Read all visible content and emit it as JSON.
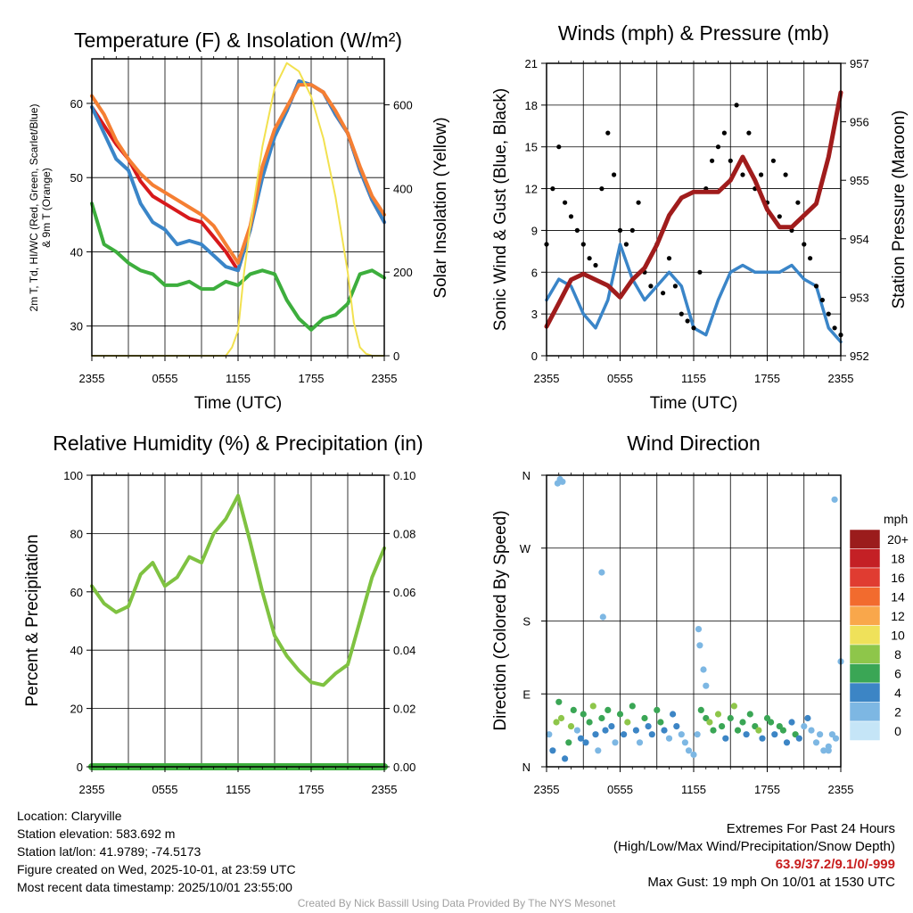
{
  "panels": {
    "temp": {
      "title": "Temperature (F) & Insolation (W/m²)",
      "xlabel": "Time (UTC)",
      "ylabel_left_line1": "2m T, Td, HI/WC (Red, Green, Scarlet/Blue)",
      "ylabel_left_line2": "& 9m T (Orange)",
      "ylabel_right": "Solar Insolation (Yellow)"
    },
    "wind": {
      "title": "Winds (mph) & Pressure (mb)",
      "xlabel": "Time (UTC)",
      "ylabel_left": "Sonic Wind & Gust (Blue, Black)",
      "ylabel_right": "Station Pressure (Maroon)"
    },
    "rh": {
      "title": "Relative Humidity (%) & Precipitation (in)",
      "ylabel_left": "Percent & Precipitation"
    },
    "dir": {
      "title": "Wind Direction",
      "ylabel_left": "Direction (Colored By Speed)",
      "legend_title": "mph"
    }
  },
  "station": {
    "location": "Location: Claryville",
    "elevation": "Station elevation: 583.692 m",
    "latlon": "Station lat/lon: 41.9789; -74.5173",
    "created": "Figure created on Wed, 2025-10-01, at 23:59 UTC",
    "recent": "Most recent data timestamp: 2025/10/01 23:55:00"
  },
  "extremes": {
    "title": "Extremes For Past 24 Hours",
    "subtitle": "(High/Low/Max Wind/Precipitation/Snow Depth)",
    "values": "63.9/37.2/9.1/0/-999",
    "max_gust": "Max Gust: 19 mph On 10/01 at 1530 UTC"
  },
  "credit": "Created By Nick Bassill Using Data Provided By The NYS Mesonet",
  "chart_data": [
    {
      "id": "temp",
      "type": "line",
      "x_ticks": [
        "2355",
        "0555",
        "1155",
        "1755",
        "2355"
      ],
      "x_range_hours": [
        0,
        24
      ],
      "y_left_ticks": [
        30,
        40,
        50,
        60
      ],
      "y_left_range": [
        26,
        66
      ],
      "y_right_ticks": [
        0,
        200,
        400,
        600
      ],
      "y_right_range": [
        0,
        710
      ],
      "series": [
        {
          "name": "2m T",
          "color": "#d7191c",
          "axis": "left",
          "hours": [
            0,
            1,
            2,
            3,
            4,
            5,
            6,
            7,
            8,
            9,
            10,
            11,
            12,
            13,
            14,
            15,
            16,
            17,
            18,
            19,
            20,
            21,
            22,
            23,
            24
          ],
          "values": [
            59.5,
            57,
            54.5,
            52.5,
            49.5,
            47.5,
            46.5,
            45.5,
            44.5,
            44,
            42,
            40,
            37.5,
            43,
            51,
            56,
            59,
            63,
            62.5,
            61.5,
            58.5,
            56,
            51,
            47,
            44
          ]
        },
        {
          "name": "Heat Index / Wind Chill",
          "color": "#3a85c8",
          "axis": "left",
          "hours": [
            0,
            1,
            2,
            3,
            4,
            5,
            6,
            7,
            8,
            9,
            10,
            11,
            12,
            13,
            14,
            15,
            16,
            17,
            18,
            19,
            20,
            21,
            22,
            23,
            24
          ],
          "values": [
            59.5,
            56,
            52.5,
            51,
            46.5,
            44,
            43,
            41,
            41.5,
            41,
            39.5,
            38,
            37.5,
            43,
            50,
            55.5,
            59,
            63,
            62.5,
            61.5,
            58.5,
            56,
            51,
            47,
            44
          ]
        },
        {
          "name": "9m T",
          "color": "#f57f33",
          "axis": "left",
          "hours": [
            0,
            1,
            2,
            3,
            4,
            5,
            6,
            7,
            8,
            9,
            10,
            11,
            12,
            13,
            14,
            15,
            16,
            17,
            18,
            19,
            20,
            21,
            22,
            23,
            24
          ],
          "values": [
            61,
            58.5,
            55,
            52.5,
            50.5,
            49,
            48,
            47,
            46,
            45,
            43.5,
            41,
            38.5,
            43.5,
            51.5,
            56.5,
            59.5,
            62.5,
            62.5,
            61.5,
            59,
            56,
            51.5,
            47.5,
            45
          ]
        },
        {
          "name": "Dew Point",
          "color": "#3dae3d",
          "axis": "left",
          "hours": [
            0,
            1,
            2,
            3,
            4,
            5,
            6,
            7,
            8,
            9,
            10,
            11,
            12,
            13,
            14,
            15,
            16,
            17,
            18,
            19,
            20,
            21,
            22,
            23,
            24
          ],
          "values": [
            46.5,
            41,
            40,
            38.5,
            37.5,
            37,
            35.5,
            35.5,
            36,
            35,
            35,
            36,
            35.5,
            37,
            37.5,
            37,
            33.5,
            31,
            29.5,
            31,
            31.5,
            33,
            37,
            37.5,
            36.5
          ]
        },
        {
          "name": "Solar Insolation",
          "color": "#f2e14f",
          "axis": "right",
          "hours": [
            0,
            1,
            2,
            3,
            4,
            5,
            6,
            7,
            8,
            9,
            10,
            11,
            11.5,
            12,
            12.5,
            13,
            14,
            15,
            16,
            17,
            18,
            19,
            20,
            21,
            21.5,
            22,
            22.5,
            23,
            24
          ],
          "values": [
            0,
            0,
            0,
            0,
            0,
            0,
            0,
            0,
            0,
            0,
            0,
            0,
            20,
            60,
            200,
            310,
            500,
            640,
            700,
            680,
            620,
            520,
            380,
            200,
            80,
            20,
            5,
            0,
            0
          ]
        }
      ]
    },
    {
      "id": "wind",
      "type": "line+scatter",
      "x_ticks": [
        "2355",
        "0555",
        "1155",
        "1755",
        "2355"
      ],
      "x_range_hours": [
        0,
        24
      ],
      "y_left_ticks": [
        0,
        3,
        6,
        9,
        12,
        15,
        18,
        21
      ],
      "y_left_range": [
        0,
        21
      ],
      "y_right_ticks": [
        952,
        953,
        954,
        955,
        956,
        957
      ],
      "y_right_range": [
        952,
        957
      ],
      "series": [
        {
          "name": "Sonic Wind",
          "color": "#3a85c8",
          "axis": "left",
          "hours": [
            0,
            1,
            2,
            3,
            4,
            5,
            6,
            7,
            8,
            9,
            10,
            11,
            12,
            13,
            14,
            15,
            16,
            17,
            18,
            19,
            20,
            21,
            22,
            23,
            24
          ],
          "values": [
            4,
            5.5,
            5,
            3,
            2,
            4,
            8,
            5.5,
            4,
            5,
            6,
            5,
            2,
            1.5,
            4,
            6,
            6.5,
            6,
            6,
            6,
            6.5,
            5.5,
            5,
            2,
            1
          ]
        },
        {
          "name": "Gust",
          "color": "#000000",
          "axis": "left",
          "hours": [
            0,
            0.5,
            1,
            1.5,
            2,
            2.5,
            3,
            3.5,
            4,
            4.5,
            5,
            5.5,
            6,
            6.5,
            7,
            7.5,
            8,
            8.5,
            9,
            9.5,
            10,
            10.5,
            11,
            11.5,
            12,
            12.5,
            13,
            13.5,
            14,
            14.5,
            15,
            15.5,
            16,
            16.5,
            17,
            17.5,
            18,
            18.5,
            19,
            19.5,
            20,
            20.5,
            21,
            21.5,
            22,
            22.5,
            23,
            23.5,
            24
          ],
          "values": [
            8,
            12,
            15,
            11,
            10,
            9,
            8,
            7,
            6.5,
            12,
            16,
            13,
            9,
            8,
            9,
            11,
            6,
            5,
            8,
            4.5,
            7,
            5,
            3,
            2.5,
            2,
            6,
            12,
            14,
            15,
            16,
            14,
            18,
            13,
            16,
            12,
            13,
            11,
            14,
            10,
            13,
            9,
            11,
            8,
            7,
            5,
            4,
            3,
            2,
            1.5
          ]
        },
        {
          "name": "Station Pressure",
          "color": "#a01c1c",
          "axis": "right",
          "hours": [
            0,
            1,
            2,
            3,
            4,
            5,
            6,
            7,
            8,
            9,
            10,
            11,
            12,
            13,
            14,
            15,
            16,
            17,
            18,
            19,
            20,
            21,
            22,
            23,
            24
          ],
          "values": [
            952.5,
            952.9,
            953.3,
            953.4,
            953.3,
            953.2,
            953.0,
            953.3,
            953.5,
            953.9,
            954.4,
            954.7,
            954.8,
            954.8,
            954.8,
            955.0,
            955.4,
            955.0,
            954.5,
            954.2,
            954.2,
            954.4,
            954.6,
            955.4,
            956.5
          ]
        }
      ]
    },
    {
      "id": "rh",
      "type": "line",
      "x_ticks": [
        "2355",
        "0555",
        "1155",
        "1755",
        "2355"
      ],
      "x_range_hours": [
        0,
        24
      ],
      "y_left_ticks": [
        0,
        20,
        40,
        60,
        80,
        100
      ],
      "y_left_range": [
        0,
        100
      ],
      "y_right_ticks": [
        "0.00",
        "0.02",
        "0.04",
        "0.06",
        "0.08",
        "0.10"
      ],
      "y_right_range": [
        0,
        0.1
      ],
      "series": [
        {
          "name": "Relative Humidity",
          "color": "#7fc241",
          "axis": "left",
          "hours": [
            0,
            1,
            2,
            3,
            4,
            5,
            6,
            7,
            8,
            9,
            10,
            11,
            12,
            13,
            14,
            15,
            16,
            17,
            18,
            19,
            20,
            21,
            22,
            23,
            24
          ],
          "values": [
            62,
            56,
            53,
            55,
            66,
            70,
            62,
            65,
            72,
            70,
            80,
            85,
            93,
            77,
            60,
            45,
            38,
            33,
            29,
            28,
            32,
            35,
            50,
            65,
            75
          ]
        },
        {
          "name": "Precipitation",
          "color": "#3dae3d",
          "axis": "right",
          "hours": [
            0,
            24
          ],
          "values": [
            0,
            0
          ]
        }
      ]
    },
    {
      "id": "dir",
      "type": "scatter",
      "x_ticks": [
        "2355",
        "0555",
        "1155",
        "1755",
        "2355"
      ],
      "x_range_hours": [
        0,
        24
      ],
      "y_ticks": [
        "N",
        "E",
        "S",
        "W",
        "N"
      ],
      "y_range_degrees": [
        0,
        360
      ],
      "legend": {
        "title": "mph",
        "labels": [
          "20+",
          "18",
          "16",
          "14",
          "12",
          "10",
          "8",
          "6",
          "4",
          "2",
          "0"
        ],
        "colors": [
          "#9b1c1c",
          "#c42025",
          "#e03c31",
          "#f26b2e",
          "#f9a74b",
          "#efe15a",
          "#8ec64a",
          "#3aa655",
          "#3c85c5",
          "#7db7e3",
          "#c5e5f7"
        ]
      },
      "points_hours": [
        0.2,
        0.5,
        0.8,
        1.0,
        1.2,
        1.5,
        1.8,
        2.0,
        2.2,
        2.5,
        2.8,
        3.0,
        3.2,
        3.5,
        3.8,
        4.0,
        4.2,
        4.5,
        4.8,
        5.0,
        5.3,
        5.6,
        6.0,
        6.3,
        6.6,
        7.0,
        7.3,
        7.6,
        8.0,
        8.3,
        8.6,
        9.0,
        9.3,
        9.6,
        10.0,
        10.3,
        10.6,
        11.0,
        11.3,
        11.6,
        12.0,
        12.3,
        12.6,
        13.0,
        13.3,
        13.6,
        14.0,
        14.3,
        14.6,
        15.0,
        15.3,
        15.6,
        16.0,
        16.3,
        16.6,
        17.0,
        17.3,
        17.6,
        18.0,
        18.3,
        18.6,
        19.0,
        19.3,
        19.6,
        20.0,
        20.3,
        20.6,
        21.0,
        21.3,
        21.6,
        22.0,
        22.3,
        22.6,
        23.0,
        23.3,
        23.6,
        0.9,
        1.1,
        1.3,
        4.5,
        4.6,
        12.4,
        12.5,
        12.8,
        13.0,
        23.0,
        23.5,
        24.0
      ],
      "points_deg": [
        40,
        20,
        55,
        80,
        60,
        10,
        30,
        50,
        70,
        45,
        35,
        65,
        30,
        55,
        75,
        40,
        20,
        60,
        45,
        70,
        50,
        30,
        65,
        40,
        55,
        75,
        45,
        30,
        60,
        50,
        40,
        70,
        55,
        45,
        35,
        65,
        50,
        40,
        30,
        20,
        15,
        40,
        70,
        60,
        55,
        45,
        65,
        50,
        35,
        60,
        75,
        45,
        55,
        40,
        65,
        50,
        45,
        35,
        60,
        55,
        40,
        50,
        45,
        30,
        55,
        40,
        35,
        50,
        60,
        45,
        30,
        40,
        20,
        25,
        40,
        35,
        350,
        355,
        352,
        240,
        185,
        170,
        150,
        120,
        100,
        20,
        330,
        130
      ],
      "points_speed": [
        1,
        4,
        7,
        6,
        8,
        3,
        5,
        7,
        6,
        2,
        4,
        5,
        3,
        6,
        7,
        4,
        2,
        5,
        3,
        6,
        4,
        2,
        5,
        3,
        7,
        6,
        4,
        2,
        5,
        3,
        4,
        6,
        5,
        3,
        2,
        4,
        3,
        2,
        1,
        1,
        1,
        2,
        6,
        5,
        7,
        6,
        8,
        5,
        4,
        6,
        7,
        5,
        6,
        4,
        6,
        5,
        7,
        4,
        6,
        5,
        4,
        6,
        5,
        4,
        3,
        5,
        4,
        2,
        3,
        2,
        1,
        2,
        1,
        1,
        2,
        1,
        1,
        1,
        1,
        2,
        1,
        1,
        1,
        2,
        1,
        1,
        1,
        1
      ]
    }
  ]
}
